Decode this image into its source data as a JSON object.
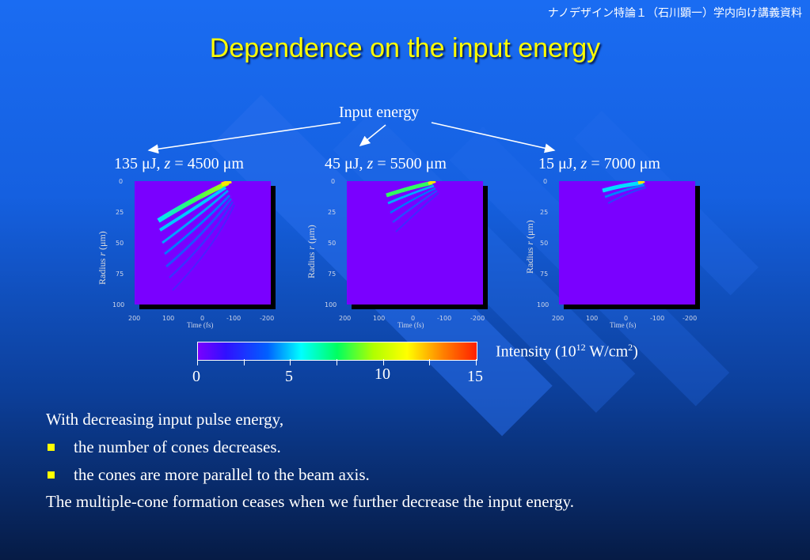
{
  "header": {
    "note": "ナノデザイン特論１（石川顕一）学内向け講義資料"
  },
  "title": "Dependence on the input energy",
  "diagram": {
    "input_energy_label": "Input energy",
    "panels": [
      {
        "energy": "135 μJ, ",
        "z_var": "z",
        "z_value": " = 4500 μm",
        "ylabel_pre": "Radius ",
        "ylabel_var": "r",
        "ylabel_post": " (μm)"
      },
      {
        "energy": "45 μJ, ",
        "z_var": "z",
        "z_value": " = 5500 μm",
        "ylabel_pre": "Radius ",
        "ylabel_var": "r",
        "ylabel_post": " (μm)"
      },
      {
        "energy": "15 μJ, ",
        "z_var": "z",
        "z_value": " = 7000 μm",
        "ylabel_pre": "Radius ",
        "ylabel_var": "r",
        "ylabel_post": " (μm)"
      }
    ],
    "y_ticks": [
      "0",
      "25",
      "50",
      "75",
      "100"
    ],
    "x_ticks": [
      "200",
      "100",
      "0",
      "-100",
      "-200"
    ],
    "xlabel": "Time (fs)"
  },
  "colorbar": {
    "ticks": [
      "0",
      "5",
      "10",
      "15"
    ],
    "label_pre": "Intensity (10",
    "label_exp": "12",
    "label_mid": " W/cm",
    "label_exp2": "2",
    "label_post": ")"
  },
  "body": {
    "intro": "With decreasing input pulse energy,",
    "bullets": [
      "the number of cones decreases.",
      "the cones are more parallel to the beam axis."
    ],
    "conclusion": "The multiple-cone formation ceases when we further decrease the input energy."
  }
}
